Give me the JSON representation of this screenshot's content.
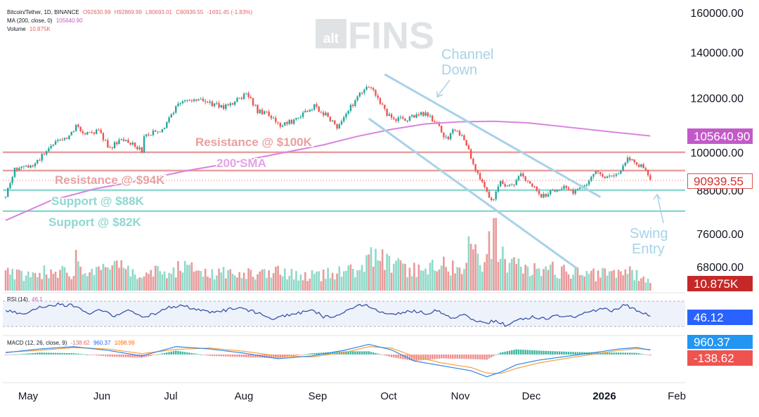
{
  "header": {
    "symbol": "Bitcoin/Tether, 1D, BINANCE",
    "o": "O92630.99",
    "h": "H92869.99",
    "l": "L90693.01",
    "c": "C90939.55",
    "chg": "-1691.45 (-1.83%)",
    "ma_label": "MA (200, close, 0)",
    "ma_value": "105640.90",
    "vol_label": "Volume",
    "vol_value": "10.875K",
    "rsi_label": "RSI (14)",
    "rsi_value": "46.1",
    "macd_label": "MACD (12, 26, close, 9)",
    "macd_hist": "-138.62",
    "macd_line": "960.37",
    "macd_signal": "1098.99"
  },
  "watermark": {
    "alt": "alt",
    "fins": "FINS"
  },
  "chart_data": {
    "type": "candlestick",
    "symbol": "BTCUSDT",
    "timeframe": "1D",
    "exchange": "BINANCE",
    "price_axis": {
      "ticks": [
        160000,
        140000,
        120000,
        100000,
        88000,
        76000,
        68000
      ],
      "tick_labels": [
        "160000.00",
        "140000.00",
        "120000.00",
        "100000.00",
        "88000.00",
        "76000.00",
        "68000.00"
      ],
      "scale": "log"
    },
    "x_axis": {
      "labels": [
        "May",
        "Jun",
        "Jul",
        "Aug",
        "Sep",
        "Oct",
        "Nov",
        "Dec",
        "2026",
        "Feb"
      ]
    },
    "price_points": [
      [
        0,
        86000
      ],
      [
        4,
        94500
      ],
      [
        10,
        95000
      ],
      [
        14,
        97000
      ],
      [
        20,
        103000
      ],
      [
        26,
        104000
      ],
      [
        31,
        109000
      ],
      [
        36,
        106500
      ],
      [
        41,
        107500
      ],
      [
        46,
        101000
      ],
      [
        51,
        105000
      ],
      [
        55,
        103500
      ],
      [
        60,
        100500
      ],
      [
        61,
        105500
      ],
      [
        65,
        107000
      ],
      [
        70,
        108500
      ],
      [
        76,
        117500
      ],
      [
        81,
        119500
      ],
      [
        86,
        119000
      ],
      [
        91,
        117800
      ],
      [
        96,
        116500
      ],
      [
        101,
        118500
      ],
      [
        106,
        121500
      ],
      [
        111,
        115000
      ],
      [
        116,
        114000
      ],
      [
        121,
        109500
      ],
      [
        126,
        111000
      ],
      [
        131,
        113500
      ],
      [
        136,
        116500
      ],
      [
        141,
        113500
      ],
      [
        146,
        108500
      ],
      [
        151,
        115000
      ],
      [
        156,
        122000
      ],
      [
        159,
        125000
      ],
      [
        163,
        121500
      ],
      [
        168,
        113500
      ],
      [
        173,
        111500
      ],
      [
        178,
        112000
      ],
      [
        183,
        114500
      ],
      [
        189,
        111000
      ],
      [
        194,
        104500
      ],
      [
        198,
        108000
      ],
      [
        203,
        103000
      ],
      [
        206,
        96500
      ],
      [
        210,
        90000
      ],
      [
        214,
        84500
      ],
      [
        218,
        90500
      ],
      [
        223,
        89000
      ],
      [
        227,
        92500
      ],
      [
        232,
        89500
      ],
      [
        236,
        86000
      ],
      [
        241,
        87500
      ],
      [
        246,
        88500
      ],
      [
        250,
        87500
      ],
      [
        255,
        89500
      ],
      [
        260,
        94000
      ],
      [
        265,
        92000
      ],
      [
        270,
        93500
      ],
      [
        274,
        98000
      ],
      [
        277,
        96500
      ],
      [
        281,
        95000
      ],
      [
        284,
        90940
      ]
    ],
    "volume_points": [
      [
        0,
        5.6
      ],
      [
        10,
        4.8
      ],
      [
        20,
        6.5
      ],
      [
        30,
        5.0
      ],
      [
        31,
        9.5
      ],
      [
        40,
        5.2
      ],
      [
        50,
        7.5
      ],
      [
        60,
        5.5
      ],
      [
        70,
        5.8
      ],
      [
        80,
        7.0
      ],
      [
        90,
        5.2
      ],
      [
        100,
        5.8
      ],
      [
        110,
        4.7
      ],
      [
        120,
        5.5
      ],
      [
        130,
        4.3
      ],
      [
        140,
        4.9
      ],
      [
        150,
        6.2
      ],
      [
        158,
        6.8
      ],
      [
        162,
        12.0
      ],
      [
        170,
        7.5
      ],
      [
        180,
        6.5
      ],
      [
        190,
        8.2
      ],
      [
        200,
        7.0
      ],
      [
        205,
        13.5
      ],
      [
        210,
        9.0
      ],
      [
        215,
        18.0
      ],
      [
        220,
        8.5
      ],
      [
        230,
        6.5
      ],
      [
        240,
        6.5
      ],
      [
        250,
        5.5
      ],
      [
        260,
        4.8
      ],
      [
        270,
        5.5
      ],
      [
        275,
        6.0
      ],
      [
        280,
        3.8
      ],
      [
        284,
        3.0
      ]
    ],
    "sma200": {
      "label": "200 SMA",
      "value": 105640.9,
      "points": [
        [
          0,
          79500
        ],
        [
          20,
          85000
        ],
        [
          40,
          88500
        ],
        [
          60,
          91000
        ],
        [
          80,
          94000
        ],
        [
          100,
          96500
        ],
        [
          120,
          99500
        ],
        [
          140,
          102500
        ],
        [
          155,
          105500
        ],
        [
          170,
          108000
        ],
        [
          185,
          110000
        ],
        [
          200,
          110800
        ],
        [
          215,
          111000
        ],
        [
          230,
          110400
        ],
        [
          250,
          108600
        ],
        [
          270,
          106800
        ],
        [
          284,
          105640.9
        ]
      ]
    },
    "levels": [
      {
        "label": "Resistance @ $100K",
        "price": 100000,
        "kind": "resistance"
      },
      {
        "label": "Resistance @ $94K",
        "price": 94000,
        "kind": "resistance"
      },
      {
        "label": "Support @ $88K",
        "price": 88000,
        "kind": "support"
      },
      {
        "label": "Support @ $82K",
        "price": 82000,
        "kind": "support"
      }
    ],
    "channel": {
      "label": "Channel Down",
      "upper": [
        [
          167,
          130000
        ],
        [
          262,
          86000
        ]
      ],
      "lower": [
        [
          160,
          112000
        ],
        [
          252,
          67500
        ]
      ]
    },
    "annotations": [
      {
        "text": "Channel Down"
      },
      {
        "text": "Swing Entry"
      }
    ],
    "badges": {
      "sma": "105640.90",
      "price": "90939.55",
      "volume": "10.875K",
      "rsi": "46.12",
      "macd_line": "960.37",
      "macd_hist": "-138.62"
    },
    "rsi": {
      "value": 46.12,
      "points": [
        [
          0,
          55
        ],
        [
          8,
          50
        ],
        [
          15,
          61
        ],
        [
          22,
          65
        ],
        [
          30,
          63
        ],
        [
          36,
          50
        ],
        [
          42,
          56
        ],
        [
          48,
          47
        ],
        [
          54,
          55
        ],
        [
          60,
          45
        ],
        [
          66,
          50
        ],
        [
          72,
          60
        ],
        [
          78,
          63
        ],
        [
          84,
          57
        ],
        [
          90,
          52
        ],
        [
          96,
          55
        ],
        [
          102,
          60
        ],
        [
          108,
          55
        ],
        [
          112,
          50
        ],
        [
          118,
          43
        ],
        [
          124,
          47
        ],
        [
          130,
          52
        ],
        [
          136,
          55
        ],
        [
          140,
          45
        ],
        [
          146,
          48
        ],
        [
          152,
          56
        ],
        [
          158,
          66
        ],
        [
          163,
          57
        ],
        [
          168,
          48
        ],
        [
          174,
          52
        ],
        [
          180,
          55
        ],
        [
          186,
          50
        ],
        [
          190,
          56
        ],
        [
          196,
          44
        ],
        [
          202,
          48
        ],
        [
          206,
          39
        ],
        [
          212,
          35
        ],
        [
          216,
          40
        ],
        [
          220,
          32
        ],
        [
          226,
          40
        ],
        [
          232,
          45
        ],
        [
          238,
          42
        ],
        [
          244,
          48
        ],
        [
          250,
          44
        ],
        [
          256,
          52
        ],
        [
          262,
          58
        ],
        [
          268,
          55
        ],
        [
          272,
          64
        ],
        [
          276,
          60
        ],
        [
          280,
          52
        ],
        [
          284,
          46.12
        ]
      ]
    },
    "macd": {
      "line_value": 960.37,
      "signal_value": 1098.99,
      "hist_value": -138.62,
      "line": [
        [
          0,
          400
        ],
        [
          15,
          1200
        ],
        [
          30,
          1700
        ],
        [
          45,
          900
        ],
        [
          60,
          -300
        ],
        [
          75,
          1700
        ],
        [
          90,
          1200
        ],
        [
          105,
          300
        ],
        [
          120,
          -900
        ],
        [
          135,
          -300
        ],
        [
          150,
          1000
        ],
        [
          160,
          2200
        ],
        [
          170,
          1000
        ],
        [
          180,
          -1400
        ],
        [
          192,
          -2400
        ],
        [
          205,
          -3500
        ],
        [
          212,
          -4800
        ],
        [
          218,
          -3800
        ],
        [
          225,
          -2200
        ],
        [
          235,
          -1200
        ],
        [
          250,
          -200
        ],
        [
          262,
          600
        ],
        [
          270,
          1200
        ],
        [
          278,
          1500
        ],
        [
          284,
          960.37
        ]
      ],
      "signal": [
        [
          0,
          500
        ],
        [
          15,
          900
        ],
        [
          30,
          1500
        ],
        [
          45,
          1200
        ],
        [
          60,
          200
        ],
        [
          75,
          1100
        ],
        [
          90,
          1400
        ],
        [
          105,
          700
        ],
        [
          120,
          -300
        ],
        [
          135,
          -500
        ],
        [
          150,
          500
        ],
        [
          160,
          1700
        ],
        [
          170,
          1400
        ],
        [
          180,
          -400
        ],
        [
          192,
          -1800
        ],
        [
          205,
          -2800
        ],
        [
          212,
          -4000
        ],
        [
          218,
          -4100
        ],
        [
          225,
          -3000
        ],
        [
          235,
          -1800
        ],
        [
          250,
          -600
        ],
        [
          262,
          300
        ],
        [
          270,
          900
        ],
        [
          278,
          1250
        ],
        [
          284,
          1098.99
        ]
      ]
    }
  }
}
